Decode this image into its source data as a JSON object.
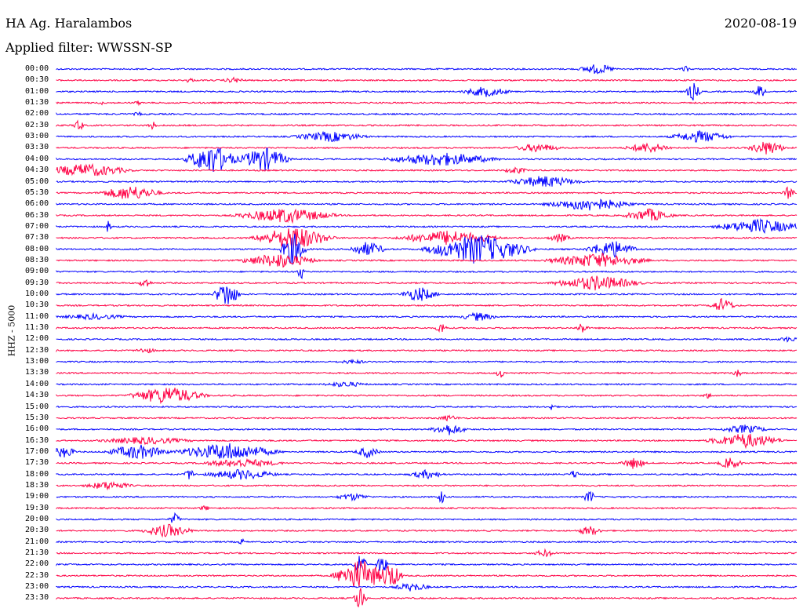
{
  "header": {
    "station": "HA Ag. Haralambos",
    "date": "2020-08-19",
    "filter": "Applied filter: WWSSN-SP"
  },
  "axis": {
    "channel": "HHZ - 5000"
  },
  "colors": {
    "odd": "#0000ff",
    "even": "#ff0044"
  },
  "rows": [
    {
      "time": "00:00",
      "color": "blue",
      "events": [
        {
          "pos": 0.73,
          "amp": 7,
          "w": 30
        },
        {
          "pos": 0.85,
          "amp": 4,
          "w": 10
        }
      ]
    },
    {
      "time": "00:30",
      "color": "red",
      "events": [
        {
          "pos": 0.18,
          "amp": 4,
          "w": 8
        },
        {
          "pos": 0.24,
          "amp": 4,
          "w": 20
        }
      ]
    },
    {
      "time": "01:00",
      "color": "blue",
      "events": [
        {
          "pos": 0.58,
          "amp": 7,
          "w": 40
        },
        {
          "pos": 0.86,
          "amp": 12,
          "w": 12
        },
        {
          "pos": 0.95,
          "amp": 9,
          "w": 12
        }
      ]
    },
    {
      "time": "01:30",
      "color": "red",
      "events": [
        {
          "pos": 0.06,
          "amp": 3,
          "w": 6
        },
        {
          "pos": 0.11,
          "amp": 3,
          "w": 8
        }
      ]
    },
    {
      "time": "02:00",
      "color": "blue",
      "events": [
        {
          "pos": 0.11,
          "amp": 3,
          "w": 10
        }
      ]
    },
    {
      "time": "02:30",
      "color": "red",
      "events": [
        {
          "pos": 0.03,
          "amp": 10,
          "w": 8
        },
        {
          "pos": 0.13,
          "amp": 6,
          "w": 8
        }
      ]
    },
    {
      "time": "03:00",
      "color": "blue",
      "events": [
        {
          "pos": 0.37,
          "amp": 7,
          "w": 60
        },
        {
          "pos": 0.87,
          "amp": 8,
          "w": 50
        }
      ]
    },
    {
      "time": "03:30",
      "color": "red",
      "events": [
        {
          "pos": 0.65,
          "amp": 6,
          "w": 40
        },
        {
          "pos": 0.8,
          "amp": 7,
          "w": 40
        },
        {
          "pos": 0.96,
          "amp": 10,
          "w": 30
        }
      ]
    },
    {
      "time": "04:00",
      "color": "blue",
      "events": [
        {
          "pos": 0.21,
          "amp": 20,
          "w": 40
        },
        {
          "pos": 0.28,
          "amp": 16,
          "w": 40
        },
        {
          "pos": 0.52,
          "amp": 9,
          "w": 90
        }
      ]
    },
    {
      "time": "04:30",
      "color": "red",
      "events": [
        {
          "pos": 0.04,
          "amp": 9,
          "w": 70
        },
        {
          "pos": 0.62,
          "amp": 5,
          "w": 20
        }
      ]
    },
    {
      "time": "05:00",
      "color": "blue",
      "events": [
        {
          "pos": 0.66,
          "amp": 8,
          "w": 60
        }
      ]
    },
    {
      "time": "05:30",
      "color": "red",
      "events": [
        {
          "pos": 0.1,
          "amp": 10,
          "w": 50
        },
        {
          "pos": 0.99,
          "amp": 10,
          "w": 10
        }
      ]
    },
    {
      "time": "06:00",
      "color": "blue",
      "events": [
        {
          "pos": 0.72,
          "amp": 9,
          "w": 70
        }
      ]
    },
    {
      "time": "06:30",
      "color": "red",
      "events": [
        {
          "pos": 0.31,
          "amp": 10,
          "w": 80
        },
        {
          "pos": 0.8,
          "amp": 9,
          "w": 40
        }
      ]
    },
    {
      "time": "07:00",
      "color": "blue",
      "events": [
        {
          "pos": 0.07,
          "amp": 8,
          "w": 6
        },
        {
          "pos": 0.95,
          "amp": 10,
          "w": 70
        }
      ]
    },
    {
      "time": "07:30",
      "color": "red",
      "events": [
        {
          "pos": 0.32,
          "amp": 16,
          "w": 60
        },
        {
          "pos": 0.53,
          "amp": 10,
          "w": 80
        },
        {
          "pos": 0.68,
          "amp": 6,
          "w": 20
        }
      ]
    },
    {
      "time": "08:00",
      "color": "blue",
      "events": [
        {
          "pos": 0.32,
          "amp": 22,
          "w": 20
        },
        {
          "pos": 0.42,
          "amp": 10,
          "w": 30
        },
        {
          "pos": 0.57,
          "amp": 20,
          "w": 80
        },
        {
          "pos": 0.75,
          "amp": 12,
          "w": 40
        }
      ]
    },
    {
      "time": "08:30",
      "color": "red",
      "events": [
        {
          "pos": 0.3,
          "amp": 10,
          "w": 60
        },
        {
          "pos": 0.73,
          "amp": 10,
          "w": 80
        }
      ]
    },
    {
      "time": "09:00",
      "color": "blue",
      "events": [
        {
          "pos": 0.33,
          "amp": 12,
          "w": 6
        }
      ]
    },
    {
      "time": "09:30",
      "color": "red",
      "events": [
        {
          "pos": 0.12,
          "amp": 8,
          "w": 10
        },
        {
          "pos": 0.73,
          "amp": 10,
          "w": 70
        }
      ]
    },
    {
      "time": "10:00",
      "color": "blue",
      "events": [
        {
          "pos": 0.23,
          "amp": 18,
          "w": 20
        },
        {
          "pos": 0.49,
          "amp": 10,
          "w": 30
        }
      ]
    },
    {
      "time": "10:30",
      "color": "red",
      "events": [
        {
          "pos": 0.9,
          "amp": 10,
          "w": 20
        }
      ]
    },
    {
      "time": "11:00",
      "color": "blue",
      "events": [
        {
          "pos": 0.05,
          "amp": 4,
          "w": 60
        },
        {
          "pos": 0.57,
          "amp": 6,
          "w": 30
        }
      ]
    },
    {
      "time": "11:30",
      "color": "red",
      "events": [
        {
          "pos": 0.52,
          "amp": 8,
          "w": 10
        },
        {
          "pos": 0.71,
          "amp": 8,
          "w": 10
        }
      ]
    },
    {
      "time": "12:00",
      "color": "blue",
      "events": [
        {
          "pos": 0.99,
          "amp": 4,
          "w": 20
        }
      ]
    },
    {
      "time": "12:30",
      "color": "red",
      "events": [
        {
          "pos": 0.12,
          "amp": 4,
          "w": 20
        }
      ]
    },
    {
      "time": "13:00",
      "color": "blue",
      "events": [
        {
          "pos": 0.4,
          "amp": 3,
          "w": 30
        }
      ]
    },
    {
      "time": "13:30",
      "color": "red",
      "events": [
        {
          "pos": 0.6,
          "amp": 7,
          "w": 8
        },
        {
          "pos": 0.92,
          "amp": 6,
          "w": 8
        }
      ]
    },
    {
      "time": "14:00",
      "color": "blue",
      "events": [
        {
          "pos": 0.39,
          "amp": 4,
          "w": 40
        }
      ]
    },
    {
      "time": "14:30",
      "color": "red",
      "events": [
        {
          "pos": 0.15,
          "amp": 12,
          "w": 60
        },
        {
          "pos": 0.88,
          "amp": 4,
          "w": 10
        }
      ]
    },
    {
      "time": "15:00",
      "color": "blue",
      "events": [
        {
          "pos": 0.67,
          "amp": 6,
          "w": 6
        }
      ]
    },
    {
      "time": "15:30",
      "color": "red",
      "events": [
        {
          "pos": 0.53,
          "amp": 4,
          "w": 20
        }
      ]
    },
    {
      "time": "16:00",
      "color": "blue",
      "events": [
        {
          "pos": 0.53,
          "amp": 8,
          "w": 30
        },
        {
          "pos": 0.93,
          "amp": 6,
          "w": 40
        }
      ]
    },
    {
      "time": "16:30",
      "color": "red",
      "events": [
        {
          "pos": 0.12,
          "amp": 5,
          "w": 80
        },
        {
          "pos": 0.93,
          "amp": 10,
          "w": 60
        }
      ]
    },
    {
      "time": "17:00",
      "color": "blue",
      "events": [
        {
          "pos": 0.01,
          "amp": 8,
          "w": 20
        },
        {
          "pos": 0.11,
          "amp": 10,
          "w": 50
        },
        {
          "pos": 0.23,
          "amp": 12,
          "w": 80
        },
        {
          "pos": 0.42,
          "amp": 8,
          "w": 20
        }
      ]
    },
    {
      "time": "17:30",
      "color": "red",
      "events": [
        {
          "pos": 0.25,
          "amp": 6,
          "w": 70
        },
        {
          "pos": 0.78,
          "amp": 8,
          "w": 20
        },
        {
          "pos": 0.91,
          "amp": 8,
          "w": 20
        }
      ]
    },
    {
      "time": "18:00",
      "color": "blue",
      "events": [
        {
          "pos": 0.18,
          "amp": 8,
          "w": 10
        },
        {
          "pos": 0.25,
          "amp": 7,
          "w": 60
        },
        {
          "pos": 0.5,
          "amp": 6,
          "w": 30
        },
        {
          "pos": 0.7,
          "amp": 6,
          "w": 10
        }
      ]
    },
    {
      "time": "18:30",
      "color": "red",
      "events": [
        {
          "pos": 0.07,
          "amp": 6,
          "w": 40
        }
      ]
    },
    {
      "time": "19:00",
      "color": "blue",
      "events": [
        {
          "pos": 0.52,
          "amp": 10,
          "w": 6
        },
        {
          "pos": 0.72,
          "amp": 9,
          "w": 10
        },
        {
          "pos": 0.4,
          "amp": 5,
          "w": 30
        }
      ]
    },
    {
      "time": "19:30",
      "color": "red",
      "events": [
        {
          "pos": 0.2,
          "amp": 4,
          "w": 10
        }
      ]
    },
    {
      "time": "20:00",
      "color": "blue",
      "events": [
        {
          "pos": 0.16,
          "amp": 8,
          "w": 10
        }
      ]
    },
    {
      "time": "20:30",
      "color": "red",
      "events": [
        {
          "pos": 0.15,
          "amp": 9,
          "w": 40
        },
        {
          "pos": 0.72,
          "amp": 7,
          "w": 20
        }
      ]
    },
    {
      "time": "21:00",
      "color": "blue",
      "events": [
        {
          "pos": 0.25,
          "amp": 5,
          "w": 6
        }
      ]
    },
    {
      "time": "21:30",
      "color": "red",
      "events": [
        {
          "pos": 0.66,
          "amp": 5,
          "w": 20
        }
      ]
    },
    {
      "time": "22:00",
      "color": "blue",
      "events": [
        {
          "pos": 0.41,
          "amp": 18,
          "w": 10
        },
        {
          "pos": 0.44,
          "amp": 14,
          "w": 10
        }
      ]
    },
    {
      "time": "22:30",
      "color": "red",
      "events": [
        {
          "pos": 0.41,
          "amp": 22,
          "w": 40
        },
        {
          "pos": 0.45,
          "amp": 18,
          "w": 20
        }
      ]
    },
    {
      "time": "23:00",
      "color": "blue",
      "events": [
        {
          "pos": 0.48,
          "amp": 6,
          "w": 30
        }
      ]
    },
    {
      "time": "23:30",
      "color": "red",
      "events": [
        {
          "pos": 0.41,
          "amp": 18,
          "w": 10
        }
      ]
    }
  ]
}
